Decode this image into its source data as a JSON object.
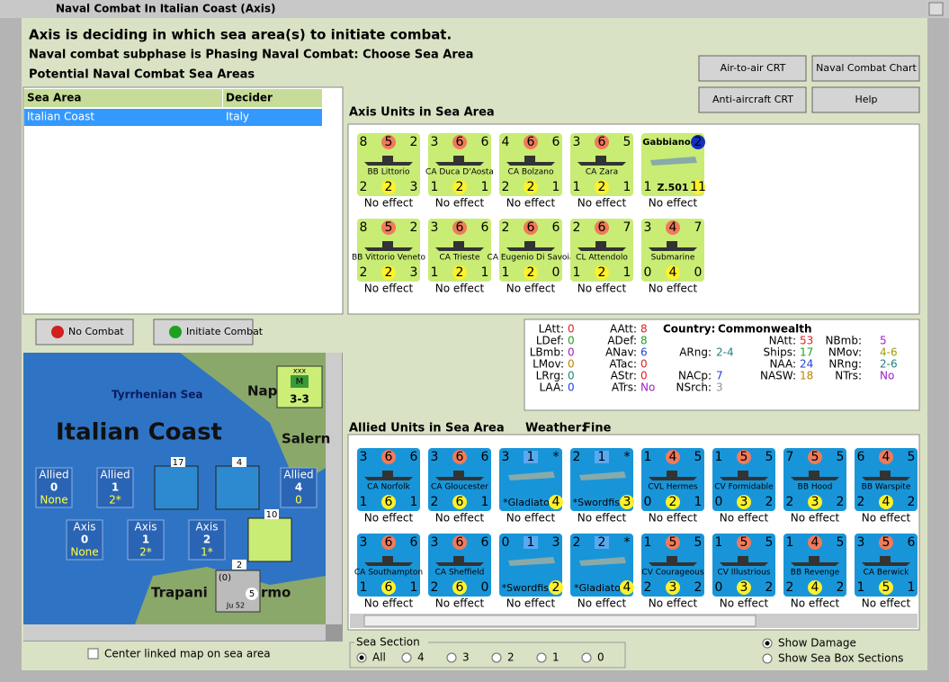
{
  "window": {
    "title": "Naval Combat In Italian Coast (Axis)"
  },
  "header": {
    "status": "Axis is deciding in which sea area(s) to initiate combat.",
    "subphase": "Naval combat subphase is Phasing Naval Combat: Choose Sea Area",
    "potential": "Potential Naval Combat Sea Areas"
  },
  "buttons": [
    "Air-to-air CRT",
    "Naval Combat Chart",
    "Anti-aircraft CRT",
    "Help"
  ],
  "table": {
    "columns": [
      "Sea Area",
      "Decider"
    ],
    "rows": [
      [
        "Italian Coast",
        "Italy"
      ]
    ]
  },
  "combat_buttons": [
    "No Combat",
    "Initiate Combat"
  ],
  "axis_units": {
    "title": "Axis Units in Sea Area",
    "units": [
      {
        "top": [
          8,
          5,
          2
        ],
        "name": "BB Littorio",
        "bottom": [
          2,
          2,
          3
        ],
        "status": "No effect"
      },
      {
        "top": [
          3,
          6,
          6
        ],
        "name": "CA Duca D'Aosta",
        "bottom": [
          1,
          2,
          1
        ],
        "status": "No effect"
      },
      {
        "top": [
          4,
          6,
          6
        ],
        "name": "CA Bolzano",
        "bottom": [
          2,
          2,
          1
        ],
        "status": "No effect"
      },
      {
        "top": [
          3,
          6,
          5
        ],
        "name": "CA Zara",
        "bottom": [
          1,
          2,
          1
        ],
        "status": "No effect"
      },
      {
        "plane": true,
        "title": "Gabbiano",
        "top": [
          null,
          null,
          2
        ],
        "name": "Z.501",
        "bottom": [
          1,
          null,
          11
        ],
        "status": "No effect"
      },
      {
        "top": [
          8,
          5,
          2
        ],
        "name": "BB Vittorio Veneto",
        "bottom": [
          2,
          2,
          3
        ],
        "status": "No effect"
      },
      {
        "top": [
          3,
          6,
          6
        ],
        "name": "CA Trieste",
        "bottom": [
          1,
          2,
          1
        ],
        "status": "No effect"
      },
      {
        "top": [
          2,
          6,
          6
        ],
        "name": "CA Eugenio Di Savoia",
        "bottom": [
          1,
          2,
          0
        ],
        "status": "No effect"
      },
      {
        "top": [
          2,
          6,
          7
        ],
        "name": "CL Attendolo",
        "bottom": [
          1,
          2,
          1
        ],
        "status": "No effect"
      },
      {
        "top": [
          3,
          4,
          7
        ],
        "name": "Submarine",
        "bottom": [
          0,
          4,
          0
        ],
        "status": "No effect"
      }
    ]
  },
  "info": {
    "country": {
      "label": "Country:",
      "value": "Commonwealth"
    },
    "columns": [
      [
        {
          "label": "LAtt:",
          "value": 0,
          "color": "#e02020"
        },
        {
          "label": "LDef:",
          "value": 0,
          "color": "#20a020"
        },
        {
          "label": "LBmb:",
          "value": 0,
          "color": "#a020c0"
        },
        {
          "label": "LMov:",
          "value": 0,
          "color": "#c08000"
        },
        {
          "label": "LRrg:",
          "value": 0,
          "color": "#208080"
        },
        {
          "label": "LAA:",
          "value": 0,
          "color": "#2040e0"
        }
      ],
      [
        {
          "label": "AAtt:",
          "value": 8,
          "color": "#e02020"
        },
        {
          "label": "ADef:",
          "value": 8,
          "color": "#20a020"
        },
        {
          "label": "ANav:",
          "value": 6,
          "color": "#2040e0"
        },
        {
          "label": "ATac:",
          "value": 0,
          "color": "#e02020"
        },
        {
          "label": "AStr:",
          "value": 0,
          "color": "#e02020"
        },
        {
          "label": "ATrs:",
          "value": "No",
          "color": "#a020c0"
        }
      ],
      [
        null,
        null,
        {
          "label": "ARng:",
          "value": "2-4",
          "color": "#208080"
        },
        null,
        {
          "label": "NACp:",
          "value": 7,
          "color": "#2040e0"
        },
        {
          "label": "NSrch:",
          "value": 3,
          "color": "#909090"
        }
      ],
      [
        null,
        {
          "label": "NAtt:",
          "value": 53,
          "color": "#e02020"
        },
        {
          "label": "Ships:",
          "value": 17,
          "color": "#20a020"
        },
        {
          "label": "NAA:",
          "value": 24,
          "color": "#2040e0"
        },
        {
          "label": "NASW:",
          "value": 18,
          "color": "#c08000"
        },
        null
      ],
      [
        null,
        {
          "label": "NBmb:",
          "value": 5,
          "color": "#a020c0"
        },
        {
          "label": "NMov:",
          "value": "4-6",
          "color": "#a0a000"
        },
        {
          "label": "NRng:",
          "value": "2-6",
          "color": "#208080"
        },
        {
          "label": "NTrs:",
          "value": "No",
          "color": "#a020c0"
        },
        null
      ]
    ]
  },
  "allied_units": {
    "title": "Allied Units in Sea Area",
    "weather_label": "Weather:",
    "weather": "Fine",
    "units": [
      {
        "top": [
          3,
          6,
          6
        ],
        "name": "CA Norfolk",
        "bottom": [
          1,
          6,
          1
        ],
        "status": "No effect"
      },
      {
        "top": [
          3,
          6,
          6
        ],
        "name": "CA Gloucester",
        "bottom": [
          2,
          6,
          1
        ],
        "status": "No effect"
      },
      {
        "plane": true,
        "top": [
          3,
          1,
          "*"
        ],
        "name": "*Gladiator*",
        "bottom": [
          null,
          null,
          4
        ],
        "status": "No effect"
      },
      {
        "plane": true,
        "top": [
          2,
          1,
          "*"
        ],
        "name": "*Swordfish*",
        "bottom": [
          null,
          null,
          3
        ],
        "status": "No effect"
      },
      {
        "top": [
          1,
          4,
          5
        ],
        "name": "CVL Hermes",
        "bottom": [
          0,
          2,
          1
        ],
        "status": "No effect"
      },
      {
        "top": [
          1,
          5,
          5
        ],
        "name": "CV Formidable",
        "bottom": [
          0,
          3,
          2
        ],
        "status": "No effect"
      },
      {
        "top": [
          7,
          5,
          5
        ],
        "name": "BB Hood",
        "bottom": [
          2,
          3,
          2
        ],
        "status": "No effect"
      },
      {
        "top": [
          6,
          4,
          5
        ],
        "name": "BB Warspite",
        "bottom": [
          2,
          4,
          2
        ],
        "status": "No effect"
      },
      {
        "top": [
          3,
          6,
          6
        ],
        "name": "CA Southampton",
        "bottom": [
          1,
          6,
          1
        ],
        "status": "No effect"
      },
      {
        "top": [
          3,
          6,
          6
        ],
        "name": "CA Sheffield",
        "bottom": [
          2,
          6,
          0
        ],
        "status": "No effect"
      },
      {
        "plane": true,
        "top": [
          0,
          1,
          3
        ],
        "name": "*Swordfish*",
        "bottom": [
          null,
          null,
          2
        ],
        "status": "No effect"
      },
      {
        "plane": true,
        "top": [
          2,
          2,
          "*"
        ],
        "name": "*Gladiator*",
        "bottom": [
          null,
          null,
          4
        ],
        "status": "No effect"
      },
      {
        "top": [
          1,
          5,
          5
        ],
        "name": "CV Courageous",
        "bottom": [
          2,
          3,
          2
        ],
        "status": "No effect"
      },
      {
        "top": [
          1,
          5,
          5
        ],
        "name": "CV Illustrious",
        "bottom": [
          0,
          3,
          2
        ],
        "status": "No effect"
      },
      {
        "top": [
          1,
          4,
          5
        ],
        "name": "BB Revenge",
        "bottom": [
          2,
          4,
          2
        ],
        "status": "No effect"
      },
      {
        "top": [
          3,
          5,
          6
        ],
        "name": "CA Berwick",
        "bottom": [
          1,
          5,
          1
        ],
        "status": "No effect"
      }
    ]
  },
  "map": {
    "labels": [
      "Tyrrhenian Sea",
      "Napl",
      "Salern",
      "Trapani",
      "rmo"
    ],
    "area": "Italian Coast",
    "boxes": [
      {
        "side": "Allied",
        "value": 0,
        "note": "None"
      },
      {
        "side": "Allied",
        "value": 1,
        "note": "2*"
      },
      {
        "side": "Allied",
        "value": 4,
        "note": "0"
      },
      {
        "side": "Axis",
        "value": 0,
        "note": "None"
      },
      {
        "side": "Axis",
        "value": 1,
        "note": "2*"
      },
      {
        "side": "Axis",
        "value": 2,
        "note": "1*"
      }
    ],
    "stacks": [
      17,
      4,
      10,
      2
    ],
    "hq": {
      "size": "xxx",
      "type": "M",
      "strength": "3-3"
    },
    "transport": {
      "cost": "(0)",
      "name": "Ju 52",
      "value": 5
    }
  },
  "center_option": "Center linked map on sea area",
  "sea_section": {
    "label": "Sea Section",
    "options": [
      "All",
      4,
      3,
      2,
      1,
      0
    ],
    "selected": 0
  },
  "display_options": {
    "options": [
      "Show Damage",
      "Show Sea Box Sections"
    ],
    "selected": 0
  }
}
